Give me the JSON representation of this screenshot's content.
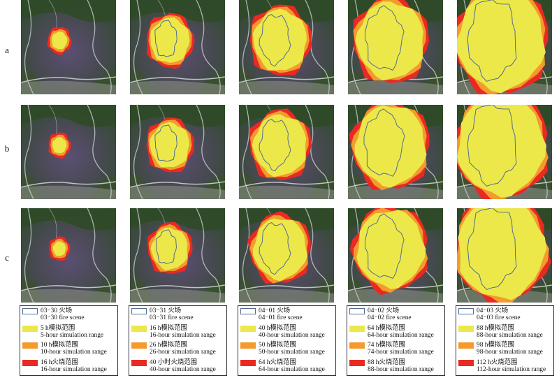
{
  "rows": [
    {
      "label": "a"
    },
    {
      "label": "b"
    },
    {
      "label": "c"
    }
  ],
  "colors": {
    "fire_scene_outline": "#556c90",
    "inner_range": "#ece84a",
    "middle_range": "#f39b2c",
    "outer_range": "#e82a22"
  },
  "columns": [
    {
      "legend": [
        {
          "type": "outline",
          "cn": "03−30 火场",
          "en": "03−30 fire scene"
        },
        {
          "type": "inner",
          "cn": "5 h模拟范围",
          "en": "5-hour simulation range"
        },
        {
          "type": "middle",
          "cn": "10 h模拟范围",
          "en": "10-hour simulation range"
        },
        {
          "type": "outer",
          "cn": "16 h火烧范围",
          "en": "16-hour simulation range"
        }
      ]
    },
    {
      "legend": [
        {
          "type": "outline",
          "cn": "03−31 火场",
          "en": "03−31 fire scene"
        },
        {
          "type": "inner",
          "cn": "16 h模拟范围",
          "en": "16-hour simulation range"
        },
        {
          "type": "middle",
          "cn": "26 h模拟范围",
          "en": "26-hour simulation range"
        },
        {
          "type": "outer",
          "cn": "40 小时火烧范围",
          "en": "40-hour simulation range"
        }
      ]
    },
    {
      "legend": [
        {
          "type": "outline",
          "cn": "04−01 火场",
          "en": "04−01 fire scene"
        },
        {
          "type": "inner",
          "cn": "40 h模拟范围",
          "en": "40-hour simulation range"
        },
        {
          "type": "middle",
          "cn": "50 h模拟范围",
          "en": "50-hour simulation range"
        },
        {
          "type": "outer",
          "cn": "64 h火烧范围",
          "en": "64-hour simulation range"
        }
      ]
    },
    {
      "legend": [
        {
          "type": "outline",
          "cn": "04−02 火场",
          "en": "04−02 fire scene"
        },
        {
          "type": "inner",
          "cn": "64 h模拟范围",
          "en": "64-hour simulation range"
        },
        {
          "type": "middle",
          "cn": "74 h模拟范围",
          "en": "74-hour simulation range"
        },
        {
          "type": "outer",
          "cn": "88 h火烧范围",
          "en": "88-hour simulation range"
        }
      ]
    },
    {
      "legend": [
        {
          "type": "outline",
          "cn": "04−03 火场",
          "en": "04−03 fire scene"
        },
        {
          "type": "inner",
          "cn": "88 h模拟范围",
          "en": "88-hour simulation range"
        },
        {
          "type": "middle",
          "cn": "98 h模拟范围",
          "en": "98-hour simulation range"
        },
        {
          "type": "outer",
          "cn": "112 h火烧范围",
          "en": "112-hour simulation range"
        }
      ]
    }
  ]
}
